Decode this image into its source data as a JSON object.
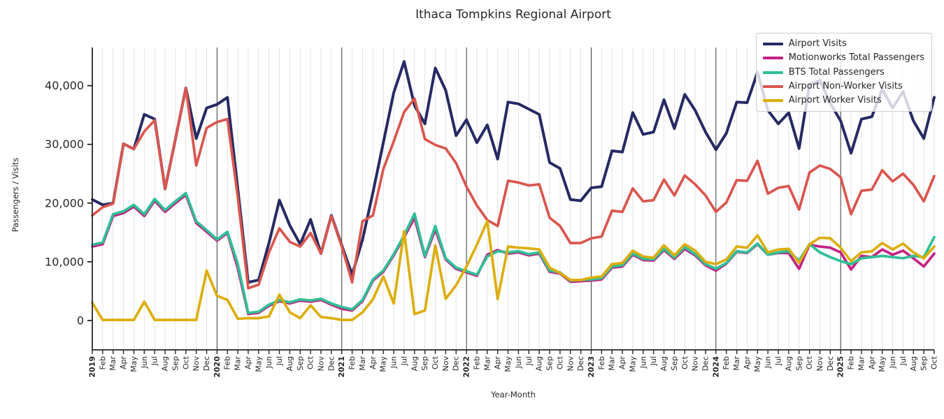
{
  "chart": {
    "title": "Ithaca Tompkins Regional Airport",
    "xlabel": "Year-Month",
    "ylabel": "Passengers / Visits"
  },
  "chart_data": {
    "type": "line",
    "title": "Ithaca Tompkins Regional Airport",
    "xlabel": "Year-Month",
    "ylabel": "Passengers / Visits",
    "legend_position": "upper right",
    "grid": "vertical line per month (light); darker vertical line at each January; no horizontal gridlines",
    "y_ticks": [
      0,
      10000,
      20000,
      30000,
      40000
    ],
    "ylim": [
      -5000,
      46500
    ],
    "x_labels": [
      "2019",
      "Feb",
      "Mar",
      "Apr",
      "May",
      "Jun",
      "Jul",
      "Aug",
      "Sep",
      "Oct",
      "Nov",
      "Dec",
      "2020",
      "Feb",
      "Mar",
      "Apr",
      "May",
      "Jun",
      "Jul",
      "Aug",
      "Sep",
      "Oct",
      "Nov",
      "Dec",
      "2021",
      "Feb",
      "Mar",
      "Apr",
      "May",
      "Jun",
      "Jul",
      "Aug",
      "Sep",
      "Oct",
      "Nov",
      "Dec",
      "2022",
      "Feb",
      "Mar",
      "Apr",
      "May",
      "Jun",
      "Jul",
      "Aug",
      "Sep",
      "Oct",
      "Nov",
      "Dec",
      "2023",
      "Feb",
      "Mar",
      "Apr",
      "May",
      "Jun",
      "Jul",
      "Aug",
      "Sep",
      "Oct",
      "Nov",
      "Dec",
      "2024",
      "Feb",
      "Mar",
      "Apr",
      "May",
      "Jun",
      "Jul",
      "Aug",
      "Sep",
      "Oct",
      "Nov",
      "Dec",
      "2025",
      "Feb",
      "Mar",
      "Apr",
      "May",
      "Jun",
      "Jul",
      "Aug",
      "Sep",
      "Oct"
    ],
    "series": [
      {
        "name": "Airport Visits",
        "color": "#262A63",
        "values": [
          20600,
          19700,
          20000,
          30100,
          29200,
          35100,
          34300,
          22400,
          30900,
          39600,
          31000,
          36200,
          36800,
          38000,
          22400,
          6500,
          6900,
          13200,
          20500,
          16200,
          13000,
          17200,
          11400,
          17900,
          12800,
          7800,
          13800,
          21800,
          30300,
          38800,
          44100,
          36600,
          33500,
          43000,
          39200,
          31500,
          34200,
          30300,
          33300,
          27500,
          37200,
          36900,
          36000,
          35100,
          26900,
          25900,
          20600,
          20400,
          22600,
          22800,
          28900,
          28700,
          35400,
          31700,
          32100,
          37600,
          32700,
          38500,
          35800,
          32100,
          29100,
          31900,
          37200,
          37100,
          42300,
          35800,
          33500,
          35400,
          29300,
          40200,
          40900,
          37000,
          34000,
          28500,
          34300,
          34700,
          39400,
          36200,
          39000,
          34000,
          31000,
          38000
        ]
      },
      {
        "name": "Motionworks Total Passengers",
        "color": "#C52184",
        "values": [
          12600,
          13000,
          17800,
          18300,
          19400,
          17800,
          20400,
          18500,
          20000,
          21400,
          16600,
          15100,
          13600,
          14900,
          8900,
          1100,
          1300,
          2500,
          3300,
          2900,
          3400,
          3200,
          3500,
          2700,
          2000,
          1700,
          3300,
          6800,
          8300,
          11100,
          14200,
          17500,
          10800,
          15500,
          10400,
          8800,
          8200,
          7600,
          11200,
          12000,
          11400,
          11600,
          11100,
          11400,
          8300,
          8000,
          6600,
          6700,
          6800,
          7000,
          9000,
          9200,
          11200,
          10300,
          10200,
          12000,
          10500,
          12200,
          11100,
          9400,
          8500,
          9700,
          11700,
          11500,
          13000,
          11200,
          11500,
          11500,
          8800,
          12900,
          12600,
          12400,
          11600,
          8700,
          11000,
          10800,
          12100,
          11200,
          11900,
          10600,
          9200,
          11400
        ]
      },
      {
        "name": "BTS Total Passengers",
        "color": "#2FBF96",
        "values": [
          12900,
          13300,
          18100,
          18600,
          19700,
          18100,
          20700,
          18800,
          20300,
          21700,
          16900,
          15400,
          13800,
          15100,
          9600,
          1300,
          1500,
          2700,
          3500,
          3100,
          3600,
          3400,
          3700,
          2900,
          2300,
          1900,
          3500,
          7000,
          8500,
          11300,
          14500,
          18200,
          11000,
          16100,
          10600,
          9000,
          8400,
          7800,
          10900,
          11800,
          11600,
          11800,
          11300,
          11600,
          8500,
          8200,
          6800,
          6900,
          7000,
          7200,
          9200,
          9400,
          11400,
          10500,
          10400,
          12200,
          10700,
          12500,
          11300,
          9600,
          8800,
          9800,
          11800,
          11600,
          13100,
          11200,
          11600,
          11800,
          10200,
          13000,
          11600,
          10800,
          10100,
          9600,
          10600,
          10800,
          11000,
          10800,
          10600,
          11000,
          10800,
          14200
        ]
      },
      {
        "name": "Airport Non-Worker Visits",
        "color": "#D9564F",
        "values": [
          17900,
          19300,
          19900,
          30100,
          29200,
          32200,
          34100,
          22400,
          30900,
          39600,
          26400,
          32800,
          33800,
          34300,
          21000,
          5500,
          6100,
          11600,
          15700,
          13400,
          12600,
          14900,
          11400,
          17800,
          12600,
          6500,
          16900,
          17900,
          25800,
          30500,
          35500,
          37800,
          30900,
          29900,
          29300,
          26800,
          22800,
          19600,
          17100,
          16100,
          23800,
          23500,
          23000,
          23200,
          17500,
          16100,
          13200,
          13200,
          14000,
          14300,
          18700,
          18500,
          22500,
          20300,
          20500,
          24000,
          21300,
          24700,
          23200,
          21300,
          18500,
          20100,
          23900,
          23800,
          27200,
          21600,
          22600,
          22900,
          18900,
          25200,
          26400,
          25800,
          24400,
          18100,
          22100,
          22300,
          25600,
          23700,
          25000,
          23100,
          20300,
          24600
        ]
      },
      {
        "name": "Airport Worker Visits",
        "color": "#DCAE0C",
        "values": [
          3000,
          100,
          100,
          100,
          100,
          3200,
          100,
          100,
          100,
          100,
          100,
          8500,
          4200,
          3500,
          300,
          400,
          400,
          700,
          4400,
          1400,
          400,
          2600,
          600,
          400,
          100,
          100,
          1400,
          3600,
          7500,
          2900,
          15200,
          1100,
          1700,
          12800,
          3700,
          6000,
          9200,
          12900,
          16900,
          3700,
          12600,
          12400,
          12300,
          12100,
          9000,
          8100,
          6900,
          6900,
          7300,
          7500,
          9600,
          9800,
          11900,
          10900,
          10700,
          12800,
          11100,
          13000,
          11900,
          10000,
          9600,
          10400,
          12600,
          12400,
          14500,
          11600,
          12100,
          12200,
          9800,
          13000,
          14100,
          14000,
          12400,
          10100,
          11600,
          11800,
          13200,
          12100,
          13100,
          11600,
          10600,
          12600
        ]
      }
    ]
  }
}
